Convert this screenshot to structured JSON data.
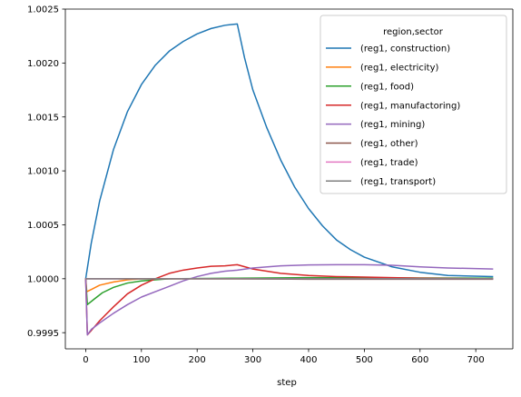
{
  "chart_data": {
    "type": "line",
    "title": "",
    "xlabel": "step",
    "ylabel": "",
    "xlim": [
      -36.5,
      766.5
    ],
    "ylim": [
      0.99935,
      1.0025
    ],
    "xticks": [
      0,
      100,
      200,
      300,
      400,
      500,
      600,
      700
    ],
    "xtick_labels": [
      "0",
      "100",
      "200",
      "300",
      "400",
      "500",
      "600",
      "700"
    ],
    "yticks": [
      0.9995,
      1.0,
      1.0005,
      1.001,
      1.0015,
      1.002,
      1.0025
    ],
    "ytick_labels": [
      "0.9995",
      "1.0000",
      "1.0005",
      "1.0010",
      "1.0015",
      "1.0020",
      "1.0025"
    ],
    "grid": false,
    "legend": {
      "title": "region,sector",
      "placement": "top-right"
    },
    "series": [
      {
        "name": "(reg1, construction)",
        "color": "#1f77b4",
        "points": [
          [
            0,
            1.0
          ],
          [
            10,
            1.00033
          ],
          [
            25,
            1.00072
          ],
          [
            50,
            1.0012
          ],
          [
            75,
            1.00155
          ],
          [
            100,
            1.0018
          ],
          [
            125,
            1.00198
          ],
          [
            150,
            1.00211
          ],
          [
            175,
            1.0022
          ],
          [
            200,
            1.00227
          ],
          [
            225,
            1.00232
          ],
          [
            250,
            1.00235
          ],
          [
            272,
            1.002362
          ],
          [
            285,
            1.00205
          ],
          [
            300,
            1.00175
          ],
          [
            325,
            1.0014
          ],
          [
            350,
            1.0011
          ],
          [
            375,
            1.00085
          ],
          [
            400,
            1.00065
          ],
          [
            425,
            1.00049
          ],
          [
            450,
            1.00036
          ],
          [
            475,
            1.00027
          ],
          [
            500,
            1.0002
          ],
          [
            550,
            1.00011
          ],
          [
            600,
            1.00006
          ],
          [
            650,
            1.00003
          ],
          [
            730,
            1.00002
          ]
        ]
      },
      {
        "name": "(reg1, electricity)",
        "color": "#ff7f0e",
        "points": [
          [
            0,
            1.0
          ],
          [
            2,
            0.99988
          ],
          [
            10,
            0.9999
          ],
          [
            25,
            0.99994
          ],
          [
            50,
            0.99997
          ],
          [
            75,
            0.99999
          ],
          [
            100,
            1.0
          ],
          [
            150,
            1.0
          ],
          [
            272,
            1.0
          ],
          [
            400,
            1.0
          ],
          [
            730,
            1.0
          ]
        ]
      },
      {
        "name": "(reg1, food)",
        "color": "#2ca02c",
        "points": [
          [
            0,
            1.0
          ],
          [
            3,
            0.99976
          ],
          [
            15,
            0.99981
          ],
          [
            30,
            0.99987
          ],
          [
            50,
            0.99992
          ],
          [
            75,
            0.99996
          ],
          [
            100,
            0.99998
          ],
          [
            125,
            0.99999
          ],
          [
            150,
            1.0
          ],
          [
            272,
            1.000005
          ],
          [
            400,
            1.00001
          ],
          [
            730,
            1.000005
          ]
        ]
      },
      {
        "name": "(reg1, manufactoring)",
        "color": "#d62728",
        "points": [
          [
            0,
            1.0
          ],
          [
            3,
            0.99948
          ],
          [
            10,
            0.99952
          ],
          [
            25,
            0.99961
          ],
          [
            50,
            0.99974
          ],
          [
            75,
            0.99986
          ],
          [
            100,
            0.99994
          ],
          [
            125,
            1.0
          ],
          [
            150,
            1.00005
          ],
          [
            175,
            1.00008
          ],
          [
            200,
            1.0001
          ],
          [
            225,
            1.000115
          ],
          [
            250,
            1.00012
          ],
          [
            272,
            1.00013
          ],
          [
            300,
            1.00009
          ],
          [
            325,
            1.00007
          ],
          [
            350,
            1.00005
          ],
          [
            400,
            1.00003
          ],
          [
            450,
            1.00002
          ],
          [
            500,
            1.000015
          ],
          [
            600,
            1.000005
          ],
          [
            730,
            1.0
          ]
        ]
      },
      {
        "name": "(reg1, mining)",
        "color": "#9467bd",
        "points": [
          [
            0,
            1.0
          ],
          [
            3,
            0.99948
          ],
          [
            10,
            0.99953
          ],
          [
            25,
            0.99959
          ],
          [
            50,
            0.99968
          ],
          [
            75,
            0.99976
          ],
          [
            100,
            0.99983
          ],
          [
            125,
            0.99988
          ],
          [
            150,
            0.99993
          ],
          [
            175,
            0.99998
          ],
          [
            200,
            1.00002
          ],
          [
            225,
            1.00005
          ],
          [
            250,
            1.00007
          ],
          [
            272,
            1.00008
          ],
          [
            300,
            1.0001
          ],
          [
            350,
            1.00012
          ],
          [
            400,
            1.000128
          ],
          [
            450,
            1.00013
          ],
          [
            500,
            1.00013
          ],
          [
            550,
            1.000125
          ],
          [
            600,
            1.00011
          ],
          [
            650,
            1.0001
          ],
          [
            730,
            1.00009
          ]
        ]
      },
      {
        "name": "(reg1, other)",
        "color": "#8c564b",
        "points": [
          [
            0,
            1.0
          ],
          [
            100,
            1.0
          ],
          [
            272,
            1.0
          ],
          [
            400,
            0.999995
          ],
          [
            730,
            0.999995
          ]
        ]
      },
      {
        "name": "(reg1, trade)",
        "color": "#e377c2",
        "points": [
          [
            0,
            1.0
          ],
          [
            100,
            1.0
          ],
          [
            272,
            1.0
          ],
          [
            730,
            1.0
          ]
        ]
      },
      {
        "name": "(reg1, transport)",
        "color": "#7f7f7f",
        "points": [
          [
            0,
            1.0
          ],
          [
            100,
            1.0
          ],
          [
            272,
            1.0
          ],
          [
            730,
            1.0
          ]
        ]
      }
    ]
  }
}
